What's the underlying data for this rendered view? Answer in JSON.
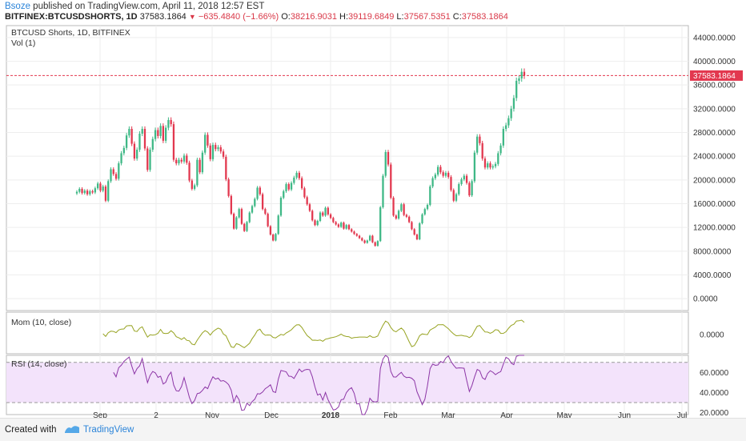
{
  "header": {
    "user": "Bsoze",
    "published": "published on TradingView.com, April 11, 2018 12:57 EST",
    "symbol": "BITFINEX:BTCUSDSHORTS, 1D",
    "last": "37583.1864",
    "change": "−635.4840 (−1.66%)",
    "open_label": "O:",
    "open": "38216.9031",
    "high_label": "H:",
    "high": "39119.6849",
    "low_label": "L:",
    "low": "37567.5351",
    "close_label": "C:",
    "close": "37583.1864"
  },
  "panes": {
    "main_title": "BTCUSD Shorts, 1D, BITFINEX",
    "vol_label": "Vol (1)",
    "mom_label": "Mom (10, close)",
    "rsi_label": "RSI (14, close)",
    "price_tag": "37583.1864"
  },
  "footer": {
    "created": "Created with",
    "brand": "TradingView"
  },
  "colors": {
    "up": "#3fb886",
    "down": "#e2384f",
    "mom": "#97a321",
    "rsi": "#8c35a6",
    "rsi_band": "#f3e3fb",
    "price_line": "#e2384f"
  },
  "chart_data": [
    {
      "type": "candlestick",
      "title": "BTCUSD Shorts, 1D, BITFINEX",
      "x_ticks": [
        "Sep",
        "2",
        "Nov",
        "Dec",
        "2018",
        "Feb",
        "Mar",
        "Apr",
        "May",
        "Jun",
        "Jul"
      ],
      "y_ticks": [
        "44000.0000",
        "40000.0000",
        "36000.0000",
        "32000.0000",
        "28000.0000",
        "24000.0000",
        "20000.0000",
        "16000.0000",
        "12000.0000",
        "8000.0000",
        "4000.0000",
        "0.0000"
      ],
      "ylim": [
        -2000,
        46000
      ],
      "last_price": 37583.1864,
      "close_series": [
        18000,
        18500,
        17800,
        18200,
        17600,
        18100,
        17900,
        18600,
        19400,
        18200,
        18900,
        16500,
        19800,
        21800,
        21000,
        20200,
        22800,
        24500,
        25400,
        27500,
        28600,
        26100,
        23600,
        25100,
        27800,
        28600,
        25300,
        21700,
        25100,
        26900,
        28400,
        27400,
        29100,
        26600,
        28800,
        30100,
        29400,
        23400,
        22800,
        23400,
        23100,
        24100,
        22900,
        19900,
        18500,
        19100,
        23400,
        21300,
        24600,
        27600,
        25800,
        23500,
        25900,
        25200,
        25500,
        24800,
        23900,
        20100,
        17300,
        14300,
        11800,
        13700,
        15100,
        12600,
        11400,
        12900,
        14500,
        15600,
        16800,
        18700,
        17600,
        15100,
        14300,
        12200,
        10800,
        9800,
        10900,
        14000,
        17000,
        18100,
        19300,
        18400,
        19500,
        20400,
        21200,
        20300,
        18600,
        17100,
        15900,
        14800,
        13200,
        12400,
        13100,
        14500,
        14000,
        15300,
        14200,
        13600,
        12900,
        12500,
        12100,
        12800,
        11800,
        12400,
        11700,
        11300,
        10900,
        10600,
        10200,
        9800,
        9400,
        9800,
        10600,
        9500,
        8900,
        9700,
        15400,
        20700,
        24700,
        22600,
        17000,
        14000,
        13500,
        14800,
        15900,
        14100,
        13800,
        12900,
        11700,
        10800,
        10000,
        12700,
        14200,
        15100,
        15800,
        18900,
        20300,
        20900,
        22200,
        21300,
        20700,
        21200,
        20500,
        18300,
        16500,
        17600,
        19300,
        20100,
        20700,
        19500,
        17400,
        19800,
        24600,
        27300,
        26200,
        23600,
        22100,
        22800,
        22100,
        22300,
        22700,
        24500,
        25800,
        28600,
        29200,
        30400,
        32000,
        33800,
        36700,
        37100,
        38217,
        37583
      ]
    },
    {
      "type": "line",
      "title": "Mom (10, close)",
      "y_ticks": [
        "0.0000"
      ]
    },
    {
      "type": "line",
      "title": "RSI (14, close)",
      "y_ticks": [
        "60.0000",
        "40.0000",
        "20.0000"
      ],
      "bands": [
        70,
        30
      ],
      "ylim": [
        18,
        77
      ]
    }
  ]
}
